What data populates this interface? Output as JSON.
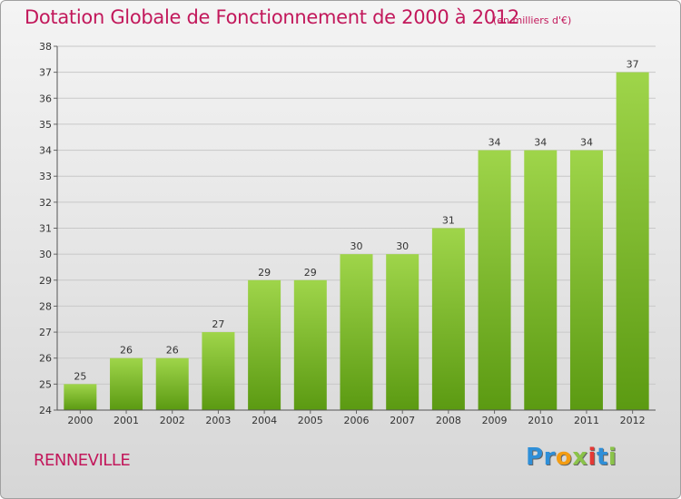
{
  "header": {
    "title": "Dotation Globale de Fonctionnement de 2000 à 2012",
    "subtitle": "(en milliers d'€)"
  },
  "footer": {
    "commune": "RENNEVILLE",
    "logo_letters": [
      {
        "char": "P",
        "color": "#2f8fd8"
      },
      {
        "char": "r",
        "color": "#2f8fd8"
      },
      {
        "char": "o",
        "color": "#f39c12"
      },
      {
        "char": "x",
        "color": "#8bc34a"
      },
      {
        "char": "i",
        "color": "#e53935"
      },
      {
        "char": "t",
        "color": "#2f8fd8"
      },
      {
        "char": "i",
        "color": "#8bc34a"
      }
    ]
  },
  "colors": {
    "accent": "#c2185b",
    "bar_top": "#9fd54a",
    "bar_bottom": "#5b9a12",
    "grid": "#c8c8c8"
  },
  "chart_data": {
    "type": "bar",
    "categories": [
      "2000",
      "2001",
      "2002",
      "2003",
      "2004",
      "2005",
      "2006",
      "2007",
      "2008",
      "2009",
      "2010",
      "2011",
      "2012"
    ],
    "values": [
      25,
      26,
      26,
      27,
      29,
      29,
      30,
      30,
      31,
      34,
      34,
      34,
      37
    ],
    "title": "Dotation Globale de Fonctionnement de 2000 à 2012",
    "subtitle": "(en milliers d'€)",
    "ylim": [
      24,
      38
    ],
    "yticks": [
      24,
      25,
      26,
      27,
      28,
      29,
      30,
      31,
      32,
      33,
      34,
      35,
      36,
      37,
      38
    ],
    "grid": true,
    "legend": "none"
  }
}
